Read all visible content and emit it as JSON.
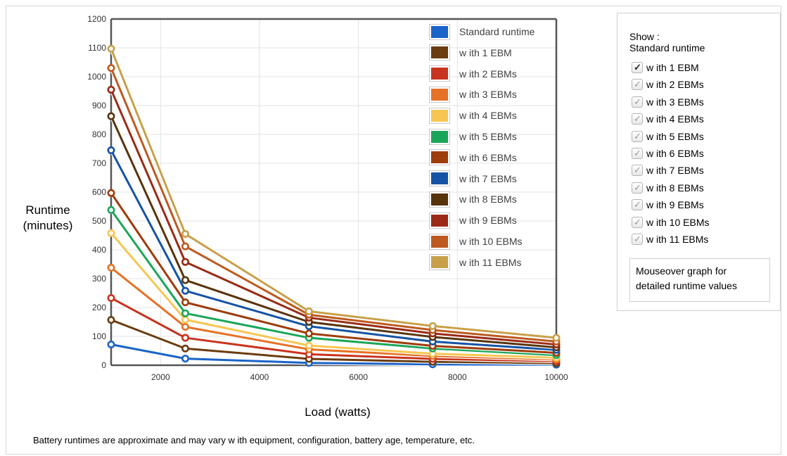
{
  "chart_data": {
    "type": "line",
    "title": "",
    "xlabel": "Load (watts)",
    "ylabel": "Runtime (minutes)",
    "ylabel_lines": [
      "Runtime",
      "(minutes)"
    ],
    "xlim": [
      1000,
      10000
    ],
    "ylim": [
      0,
      1200
    ],
    "x_ticks": [
      2000,
      4000,
      6000,
      8000,
      10000
    ],
    "y_ticks": [
      0,
      100,
      200,
      300,
      400,
      500,
      600,
      700,
      800,
      900,
      1000,
      1100,
      1200
    ],
    "grid": true,
    "legend_position": "top-right",
    "x": [
      1000,
      2500,
      5000,
      7500,
      10000
    ],
    "series": [
      {
        "name": "Standard runtime",
        "color": "#1a63c8",
        "values": [
          72,
          23,
          8,
          3,
          2
        ]
      },
      {
        "name": "with 1 EBM",
        "color": "#6b3c0f",
        "values": [
          157,
          58,
          22,
          12,
          7
        ]
      },
      {
        "name": "with 2 EBMs",
        "color": "#c8341e",
        "values": [
          233,
          95,
          38,
          22,
          14
        ]
      },
      {
        "name": "with 3 EBMs",
        "color": "#e57226",
        "values": [
          338,
          133,
          55,
          32,
          20
        ]
      },
      {
        "name": "with 4 EBMs",
        "color": "#f7c652",
        "values": [
          458,
          158,
          68,
          40,
          26
        ]
      },
      {
        "name": "with 5 EBMs",
        "color": "#1aa65a",
        "values": [
          538,
          180,
          95,
          58,
          35
        ]
      },
      {
        "name": "with 6 EBMs",
        "color": "#9e3c0c",
        "values": [
          597,
          218,
          110,
          67,
          43
        ]
      },
      {
        "name": "with 7 EBMs",
        "color": "#1553a4",
        "values": [
          745,
          258,
          135,
          82,
          53
        ]
      },
      {
        "name": "with 8 EBMs",
        "color": "#58340c",
        "values": [
          863,
          295,
          150,
          98,
          62
        ]
      },
      {
        "name": "with 9 EBMs",
        "color": "#9a2a16",
        "values": [
          955,
          358,
          165,
          110,
          72
        ]
      },
      {
        "name": "with 10 EBMs",
        "color": "#bd5a1f",
        "values": [
          1030,
          412,
          175,
          122,
          82
        ]
      },
      {
        "name": "with 11 EBMs",
        "color": "#c8a04a",
        "values": [
          1097,
          455,
          187,
          136,
          95
        ]
      }
    ]
  },
  "panel": {
    "show_label": "Show :",
    "standard_label": "Standard runtime",
    "checkboxes": [
      {
        "label": "w ith 1 EBM",
        "checked": true
      },
      {
        "label": "w ith 2 EBMs",
        "checked": false
      },
      {
        "label": "w ith 3 EBMs",
        "checked": false
      },
      {
        "label": "w ith 4 EBMs",
        "checked": false
      },
      {
        "label": "w ith 5 EBMs",
        "checked": false
      },
      {
        "label": "w ith 6 EBMs",
        "checked": false
      },
      {
        "label": "w ith 7 EBMs",
        "checked": false
      },
      {
        "label": "w ith 8 EBMs",
        "checked": false
      },
      {
        "label": "w ith 9 EBMs",
        "checked": false
      },
      {
        "label": "w ith 10 EBMs",
        "checked": false
      },
      {
        "label": "w ith 11 EBMs",
        "checked": false
      }
    ],
    "note": "Mouseover graph for detailed runtime values"
  },
  "legend_labels": [
    "Standard runtime",
    "w ith 1 EBM",
    "w ith 2 EBMs",
    "w ith 3 EBMs",
    "w ith 4 EBMs",
    "w ith 5 EBMs",
    "w ith 6 EBMs",
    "w ith 7 EBMs",
    "w ith 8 EBMs",
    "w ith 9 EBMs",
    "w ith 10 EBMs",
    "w ith 11 EBMs"
  ],
  "footnote": "Battery runtimes are approximate and may vary w ith equipment, configuration, battery age, temperature, etc."
}
